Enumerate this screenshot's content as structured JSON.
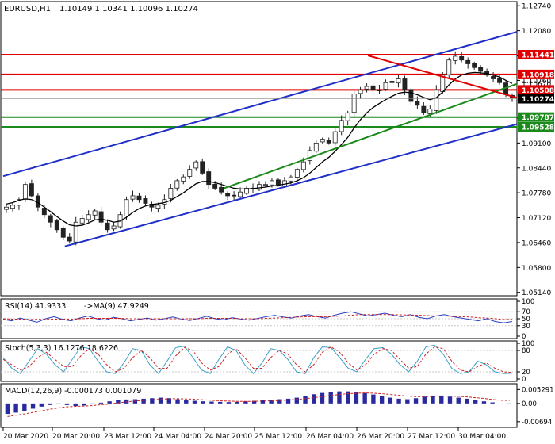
{
  "header": {
    "symbol": "EURUSD,H1",
    "ohlc": "1.10149 1.10341 1.10096 1.10274"
  },
  "colors": {
    "bull_candle": "#222222",
    "bear_candle": "#222222",
    "ma_line": "#000000",
    "channel": "#1f2fc8",
    "trend_green": "#1a8a1a",
    "resistance": "#e00000",
    "support": "#1a8a1a",
    "rsi_line": "#2a3ec0",
    "rsi_signal": "#cc2222",
    "stoch_main": "#3aa0c8",
    "stoch_signal": "#cc2222",
    "macd_hist": "#2a2aa0",
    "macd_signal": "#cc2222",
    "grid": "#c8c8c8",
    "label_red": "#e00000",
    "label_green": "#1a8a1a",
    "current_price": "#000000"
  },
  "chart_data": [
    {
      "type": "candlestick",
      "title": "EURUSD,H1",
      "ylim": [
        1.0505,
        1.1285
      ],
      "y_ticks": [
        "1.12740",
        "1.12080",
        "1.11410",
        "1.10760",
        "1.09760",
        "1.09100",
        "1.08440",
        "1.07780",
        "1.07120",
        "1.06460",
        "1.05800",
        "1.05140"
      ],
      "y_tick_values": [
        1.1274,
        1.1208,
        1.1141,
        1.1076,
        1.0976,
        1.091,
        1.0844,
        1.0778,
        1.0712,
        1.0646,
        1.058,
        1.0514
      ],
      "x_ticks": [
        "20 Mar 2020",
        "20 Mar 20:00",
        "23 Mar 12:00",
        "24 Mar 04:00",
        "24 Mar 20:00",
        "25 Mar 12:00",
        "26 Mar 04:00",
        "26 Mar 20:00",
        "27 Mar 12:00",
        "30 Mar 04:00"
      ],
      "close_path": [
        1.074,
        1.0745,
        1.076,
        1.08,
        1.077,
        1.074,
        1.072,
        1.07,
        1.068,
        1.066,
        1.065,
        1.07,
        1.071,
        1.072,
        1.073,
        1.07,
        1.068,
        1.069,
        1.072,
        1.076,
        1.077,
        1.076,
        1.075,
        1.074,
        1.0745,
        1.076,
        1.079,
        1.081,
        1.082,
        1.084,
        1.086,
        1.083,
        1.08,
        1.079,
        1.078,
        1.077,
        1.077,
        1.078,
        1.079,
        1.079,
        1.08,
        1.08,
        1.081,
        1.08,
        1.081,
        1.082,
        1.084,
        1.086,
        1.089,
        1.091,
        1.092,
        1.091,
        1.094,
        1.097,
        1.099,
        1.104,
        1.105,
        1.106,
        1.105,
        1.105,
        1.107,
        1.107,
        1.108,
        1.105,
        1.102,
        1.101,
        1.099,
        1.1,
        1.105,
        1.109,
        1.113,
        1.114,
        1.113,
        1.112,
        1.111,
        1.11,
        1.109,
        1.108,
        1.107,
        1.104,
        1.103
      ],
      "ma_path": [
        1.0748,
        1.0752,
        1.0758,
        1.0762,
        1.076,
        1.0752,
        1.074,
        1.0728,
        1.0715,
        1.0703,
        1.0693,
        1.069,
        1.0692,
        1.0698,
        1.0706,
        1.0708,
        1.0705,
        1.07,
        1.0703,
        1.0713,
        1.0726,
        1.0736,
        1.0743,
        1.0747,
        1.0749,
        1.0752,
        1.0758,
        1.0768,
        1.0778,
        1.079,
        1.0802,
        1.0808,
        1.0808,
        1.0805,
        1.08,
        1.0795,
        1.079,
        1.0788,
        1.0788,
        1.0789,
        1.0791,
        1.0793,
        1.0796,
        1.0798,
        1.0801,
        1.0804,
        1.081,
        1.0818,
        1.083,
        1.0845,
        1.086,
        1.0872,
        1.0888,
        1.0906,
        1.0925,
        1.095,
        1.0972,
        1.099,
        1.1004,
        1.1015,
        1.1025,
        1.1034,
        1.1042,
        1.1045,
        1.1043,
        1.1038,
        1.1031,
        1.1025,
        1.103,
        1.1045,
        1.1064,
        1.108,
        1.109,
        1.1095,
        1.1097,
        1.1096,
        1.1094,
        1.109,
        1.1085,
        1.1076,
        1.1068
      ],
      "lines": {
        "channel_upper": [
          [
            0,
            1.0822
          ],
          [
            100,
            1.1205
          ]
        ],
        "channel_lower": [
          [
            12,
            1.0636
          ],
          [
            100,
            1.096
          ]
        ],
        "trend_green": [
          [
            43,
            1.079
          ],
          [
            100,
            1.1067
          ]
        ],
        "red_downtrend": [
          [
            71,
            1.1142
          ],
          [
            100,
            1.103
          ]
        ]
      },
      "levels": [
        {
          "value": 1.11441,
          "label": "1.11441",
          "kind": "resistance"
        },
        {
          "value": 1.10918,
          "label": "1.10918",
          "kind": "resistance"
        },
        {
          "value": 1.10508,
          "label": "1.10508",
          "kind": "resistance"
        },
        {
          "value": 1.09787,
          "label": "1.09787",
          "kind": "support"
        },
        {
          "value": 1.09528,
          "label": "1.09528",
          "kind": "support"
        }
      ],
      "current_price": {
        "value": 1.10274,
        "label": "1.10274"
      },
      "partial_tick_label": "1.10670"
    },
    {
      "type": "line",
      "title": "RSI(14) 41.9333",
      "signal_label": "->MA(9) 47.9249",
      "ylim": [
        0,
        100
      ],
      "y_ticks": [
        "100",
        "70",
        "50",
        "30",
        "0"
      ],
      "y_tick_values": [
        100,
        70,
        50,
        30,
        0
      ],
      "series": [
        {
          "name": "RSI(14)",
          "values": [
            48,
            44,
            52,
            46,
            40,
            50,
            56,
            48,
            44,
            52,
            58,
            50,
            46,
            54,
            50,
            44,
            48,
            52,
            46,
            50,
            55,
            49,
            45,
            51,
            57,
            50,
            47,
            53,
            49,
            46,
            51,
            56,
            60,
            55,
            52,
            58,
            62,
            56,
            52,
            60,
            66,
            70,
            64,
            58,
            62,
            66,
            60,
            56,
            62,
            54,
            50,
            58,
            62,
            56,
            52,
            48,
            44,
            50,
            42,
            38,
            42
          ]
        },
        {
          "name": "MA(9)",
          "values": [
            50,
            49,
            49,
            48,
            48,
            48,
            49,
            49,
            49,
            50,
            51,
            51,
            51,
            51,
            51,
            50,
            50,
            50,
            50,
            50,
            50,
            50,
            50,
            50,
            51,
            51,
            51,
            51,
            50,
            50,
            50,
            51,
            52,
            53,
            54,
            55,
            56,
            56,
            56,
            57,
            58,
            60,
            62,
            62,
            62,
            62,
            62,
            61,
            61,
            60,
            59,
            58,
            58,
            57,
            56,
            55,
            53,
            52,
            50,
            48,
            48
          ]
        }
      ]
    },
    {
      "type": "line",
      "title": "Stoch(5,3,3) 16.1276 18.6226",
      "ylim": [
        0,
        100
      ],
      "y_ticks": [
        "100",
        "80",
        "20",
        "0"
      ],
      "y_tick_values": [
        100,
        80,
        20,
        0
      ],
      "series": [
        {
          "name": "Stoch %K",
          "values": [
            60,
            30,
            15,
            50,
            85,
            70,
            40,
            20,
            55,
            90,
            85,
            50,
            20,
            15,
            45,
            85,
            80,
            40,
            15,
            50,
            88,
            92,
            60,
            25,
            15,
            55,
            90,
            80,
            40,
            15,
            45,
            85,
            80,
            55,
            20,
            15,
            60,
            90,
            88,
            60,
            30,
            20,
            55,
            85,
            88,
            70,
            40,
            20,
            50,
            90,
            95,
            70,
            30,
            15,
            20,
            50,
            40,
            20,
            15,
            16
          ]
        },
        {
          "name": "Stoch %D",
          "values": [
            55,
            40,
            25,
            35,
            60,
            75,
            55,
            35,
            35,
            65,
            85,
            70,
            40,
            20,
            30,
            60,
            80,
            60,
            30,
            30,
            65,
            88,
            80,
            45,
            25,
            35,
            70,
            85,
            60,
            30,
            30,
            60,
            80,
            70,
            40,
            20,
            40,
            75,
            90,
            75,
            45,
            25,
            40,
            70,
            85,
            80,
            55,
            30,
            35,
            70,
            90,
            85,
            50,
            25,
            20,
            35,
            45,
            30,
            20,
            18
          ]
        }
      ]
    },
    {
      "type": "bar",
      "title": "MACD(12,26,9) -0.000173 0.001079",
      "ylim": [
        -0.0082,
        0.0066
      ],
      "y_ticks": [
        "0.005291",
        "0.00",
        "-0.00694"
      ],
      "y_tick_values": [
        0.005291,
        0.0,
        -0.00694
      ],
      "series": [
        {
          "name": "MACD",
          "values": [
            -0.004,
            -0.0035,
            -0.0028,
            -0.002,
            -0.0012,
            -0.0006,
            -0.0003,
            -0.0006,
            -0.001,
            -0.0008,
            -0.0003,
            0.0003,
            0.0008,
            0.0012,
            0.0015,
            0.0016,
            0.0018,
            0.002,
            0.0022,
            0.002,
            0.0016,
            0.0012,
            0.001,
            0.0008,
            0.0007,
            0.0006,
            0.0005,
            0.0006,
            0.0008,
            0.001,
            0.0012,
            0.0014,
            0.0016,
            0.0018,
            0.0022,
            0.0028,
            0.0035,
            0.004,
            0.0044,
            0.0046,
            0.0046,
            0.0044,
            0.004,
            0.0034,
            0.0028,
            0.0022,
            0.0018,
            0.0016,
            0.002,
            0.0026,
            0.003,
            0.003,
            0.0026,
            0.0022,
            0.0018,
            0.0012,
            0.0008,
            0.0004,
            0.0,
            -0.0002
          ]
        },
        {
          "name": "Signal",
          "values": [
            -0.005,
            -0.0045,
            -0.004,
            -0.0034,
            -0.0028,
            -0.0022,
            -0.0017,
            -0.0013,
            -0.0011,
            -0.001,
            -0.0008,
            -0.0005,
            -0.0002,
            0.0002,
            0.0006,
            0.0009,
            0.0012,
            0.0014,
            0.0016,
            0.0018,
            0.0018,
            0.0017,
            0.0016,
            0.0014,
            0.0012,
            0.001,
            0.0009,
            0.0008,
            0.0008,
            0.0008,
            0.0009,
            0.001,
            0.0011,
            0.0013,
            0.0015,
            0.0018,
            0.0022,
            0.0026,
            0.003,
            0.0034,
            0.0037,
            0.0039,
            0.004,
            0.0039,
            0.0037,
            0.0034,
            0.0031,
            0.0028,
            0.0026,
            0.0026,
            0.0027,
            0.0028,
            0.0028,
            0.0027,
            0.0025,
            0.0022,
            0.0019,
            0.0015,
            0.0012,
            0.0011
          ]
        }
      ]
    }
  ]
}
